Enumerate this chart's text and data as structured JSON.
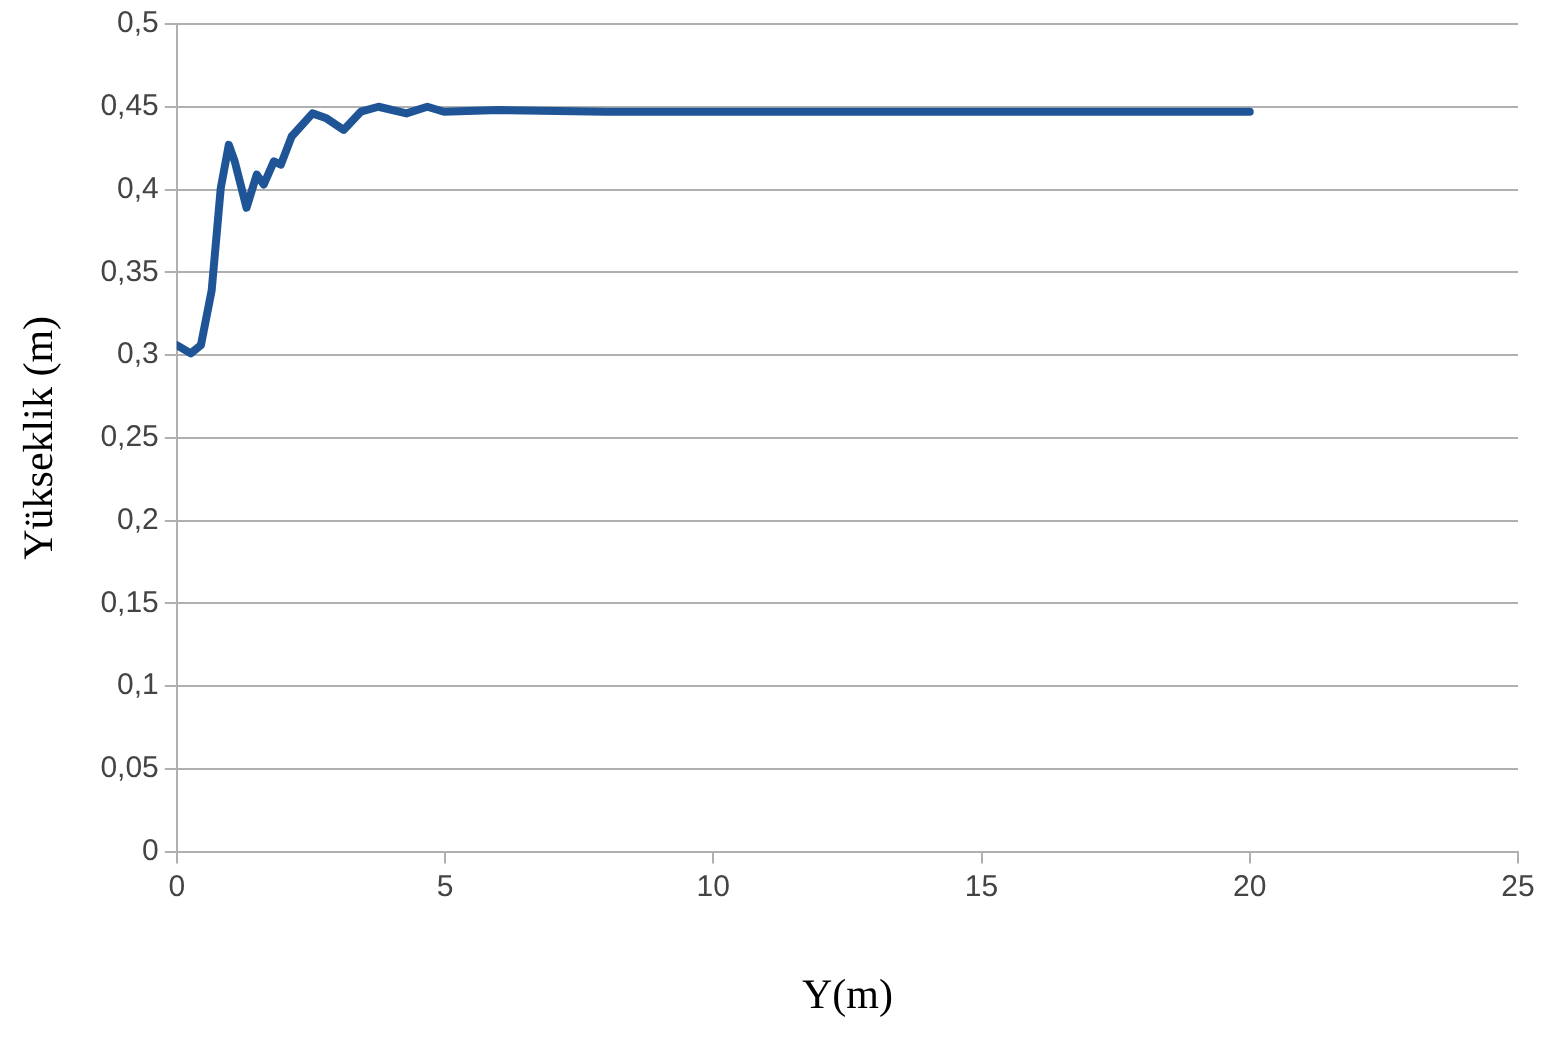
{
  "chart_data": {
    "type": "line",
    "xlabel": "Y(m)",
    "ylabel": "Yükseklik (m)",
    "series": [
      {
        "color": "#1f5596",
        "x": [
          0,
          0.26,
          0.45,
          0.65,
          0.82,
          0.97,
          1.08,
          1.3,
          1.49,
          1.62,
          1.81,
          1.94,
          2.14,
          2.53,
          2.79,
          3.11,
          3.43,
          3.76,
          4.28,
          4.67,
          4.98,
          6,
          8,
          10,
          15,
          20
        ],
        "values": [
          0.306,
          0.301,
          0.306,
          0.339,
          0.401,
          0.427,
          0.417,
          0.389,
          0.409,
          0.403,
          0.417,
          0.415,
          0.432,
          0.446,
          0.443,
          0.436,
          0.447,
          0.45,
          0.446,
          0.45,
          0.447,
          0.448,
          0.447,
          0.447,
          0.447,
          0.447
        ]
      }
    ],
    "xlim": [
      0,
      25
    ],
    "xticks": [
      0,
      5,
      10,
      15,
      20,
      25
    ],
    "ylim": [
      0,
      0.5
    ],
    "yticks": [
      0,
      {
        "value": 0.05,
        "label": "0,05"
      },
      {
        "value": 0.1,
        "label": "0,1"
      },
      {
        "value": 0.15,
        "label": "0,15"
      },
      {
        "value": 0.2,
        "label": "0,2"
      },
      {
        "value": 0.25,
        "label": "0,25"
      },
      {
        "value": 0.3,
        "label": "0,3"
      },
      {
        "value": 0.35,
        "label": "0,35"
      },
      {
        "value": 0.4,
        "label": "0,4"
      },
      {
        "value": 0.45,
        "label": "0,45"
      },
      {
        "value": 0.5,
        "label": "0,5"
      }
    ],
    "grid": "y",
    "legend": false,
    "marker": "none",
    "line_style": "solid"
  }
}
